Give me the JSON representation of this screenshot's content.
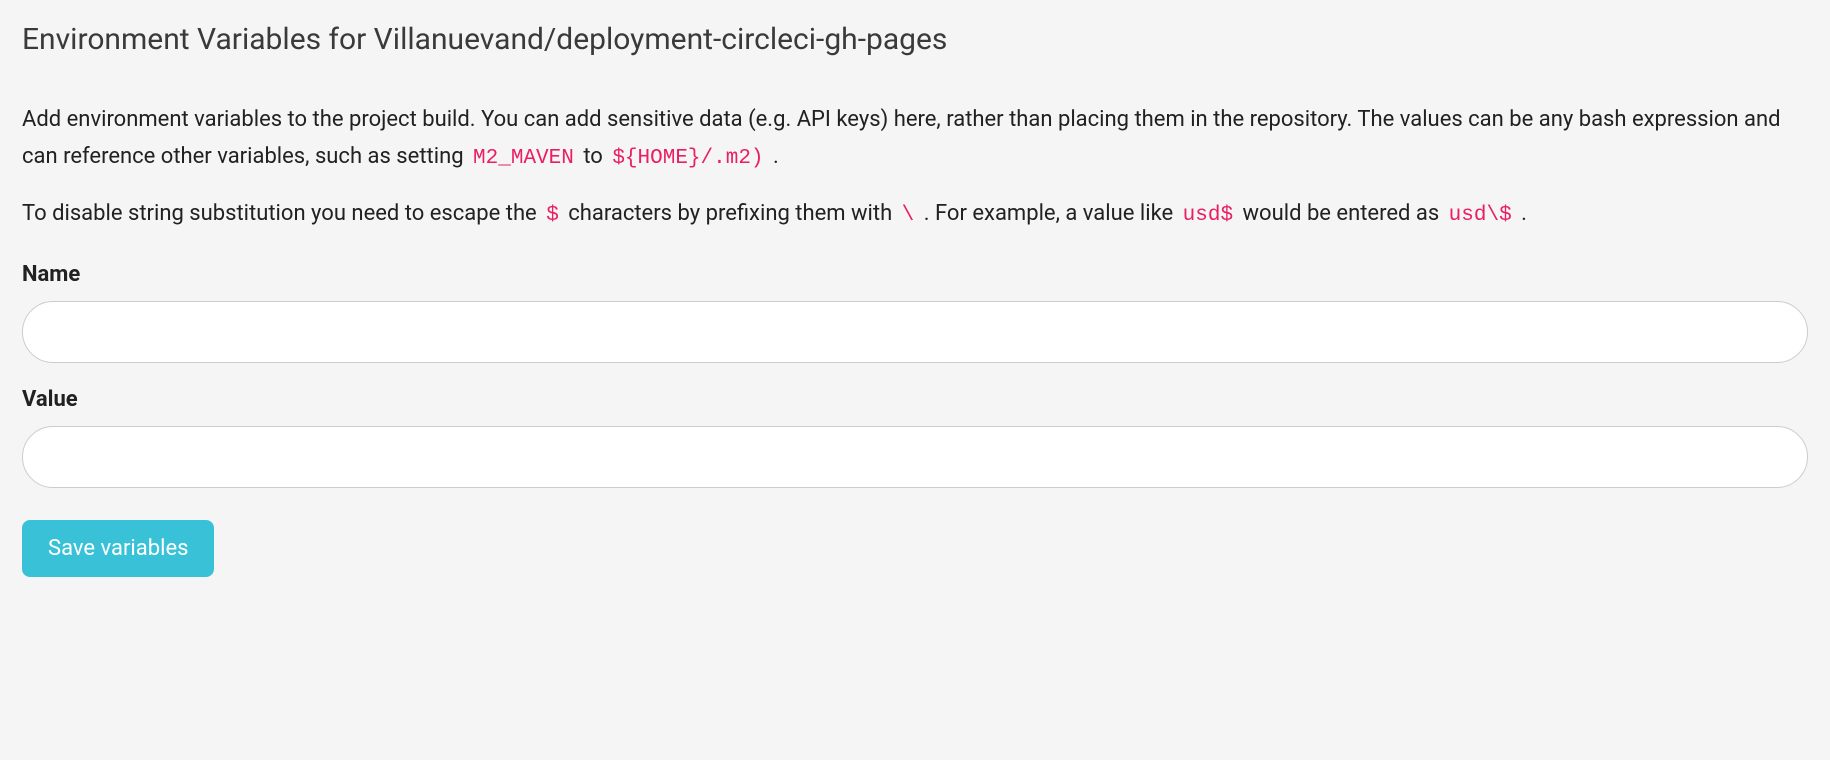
{
  "heading": "Environment Variables for Villanuevand/deployment-circleci-gh-pages",
  "description1": {
    "text1": "Add environment variables to the project build. You can add sensitive data (e.g. API keys) here, rather than placing them in the repository. The values can be any bash expression and can reference other variables, such as setting ",
    "code1": "M2_MAVEN",
    "text2": " to ",
    "code2": "${HOME}/.m2)",
    "text3": " ."
  },
  "description2": {
    "text1": "To disable string substitution you need to escape the ",
    "code1": "$",
    "text2": " characters by prefixing them with ",
    "code2": "\\",
    "text3": " . For example, a value like ",
    "code3": "usd$",
    "text4": " would be entered as ",
    "code4": "usd\\$",
    "text5": " ."
  },
  "form": {
    "name_label": "Name",
    "name_value": "",
    "value_label": "Value",
    "value_value": "",
    "save_button_label": "Save variables"
  },
  "colors": {
    "background": "#f5f5f5",
    "text": "#212121",
    "heading": "#3a3a3a",
    "code": "#e91e63",
    "input_border": "#cccccc",
    "input_bg": "#ffffff",
    "button_bg": "#39c2d7",
    "button_text": "#ffffff"
  }
}
